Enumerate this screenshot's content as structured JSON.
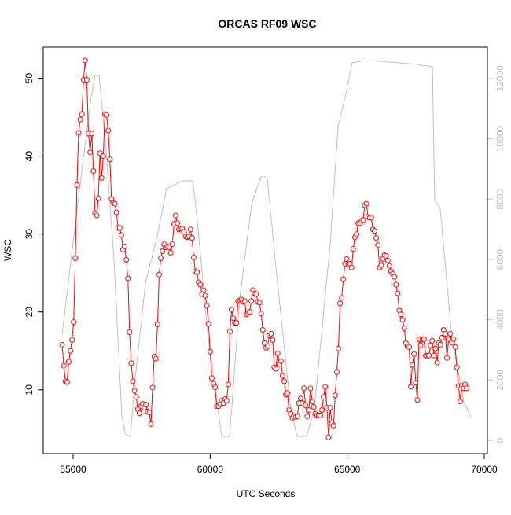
{
  "chart_data": {
    "type": "line",
    "title": "ORCAS RF09 WSC",
    "xlabel": "UTC Seconds",
    "ylabel": "WSC",
    "xlim": [
      53910,
      70115
    ],
    "xticks": [
      55000,
      60000,
      65000,
      70000
    ],
    "ylim": [
      1.8,
      54.0
    ],
    "yticks": [
      10,
      20,
      30,
      40,
      50
    ],
    "y2lim": [
      -440,
      13040
    ],
    "y2ticks": [
      0,
      2000,
      4000,
      6000,
      8000,
      10000,
      12000
    ],
    "series": [
      {
        "color": "#ff0000",
        "marker": "circle",
        "x": [
          54600,
          54660,
          54720,
          54780,
          54840,
          54900,
          54960,
          55020,
          55080,
          55140,
          55200,
          55260,
          55320,
          55380,
          55440,
          55500,
          55560,
          55620,
          55680,
          55740,
          55800,
          55860,
          55920,
          55980,
          56040,
          56100,
          56160,
          56220,
          56280,
          56340,
          56400,
          56460,
          56520,
          56580,
          56640,
          56700,
          56760,
          56820,
          56880,
          56940,
          57000,
          57060,
          57120,
          57180,
          57240,
          57300,
          57360,
          57420,
          57480,
          57540,
          57600,
          57660,
          57720,
          57780,
          57840,
          57900,
          57960,
          58020,
          58080,
          58140,
          58200,
          58260,
          58320,
          58380,
          58440,
          58500,
          58560,
          58620,
          58680,
          58740,
          58800,
          58860,
          58920,
          58980,
          59040,
          59100,
          59160,
          59220,
          59280,
          59340,
          59400,
          59460,
          59520,
          59580,
          59640,
          59700,
          59760,
          59820,
          59880,
          59940,
          60000,
          60060,
          60120,
          60180,
          60240,
          60300,
          60360,
          60420,
          60480,
          60540,
          60600,
          60660,
          60720,
          60780,
          60840,
          60900,
          60960,
          61020,
          61080,
          61140,
          61200,
          61260,
          61320,
          61380,
          61440,
          61500,
          61560,
          61620,
          61680,
          61740,
          61800,
          61860,
          61920,
          61980,
          62040,
          62100,
          62160,
          62220,
          62280,
          62340,
          62400,
          62460,
          62520,
          62580,
          62640,
          62700,
          62760,
          62820,
          62880,
          62940,
          63000,
          63060,
          63120,
          63180,
          63240,
          63300,
          63360,
          63420,
          63480,
          63540,
          63600,
          63660,
          63720,
          63780,
          63840,
          63900,
          63960,
          64020,
          64080,
          64140,
          64200,
          64260,
          64320,
          64380,
          64440,
          64500,
          64560,
          64620,
          64680,
          64740,
          64800,
          64860,
          64920,
          64980,
          65040,
          65100,
          65160,
          65220,
          65280,
          65340,
          65400,
          65460,
          65520,
          65580,
          65640,
          65700,
          65760,
          65820,
          65880,
          65940,
          66000,
          66060,
          66120,
          66180,
          66240,
          66300,
          66360,
          66420,
          66480,
          66540,
          66600,
          66660,
          66720,
          66780,
          66840,
          66900,
          66960,
          67020,
          67080,
          67140,
          67200,
          67260,
          67320,
          67380,
          67440,
          67500,
          67560,
          67620,
          67680,
          67740,
          67800,
          67860,
          67920,
          67980,
          68040,
          68100,
          68160,
          68220,
          68280,
          68340,
          68400,
          68460,
          68520,
          68580,
          68640,
          68700,
          68760,
          68820,
          68880,
          68940,
          69000,
          69060,
          69120,
          69180,
          69240,
          69300,
          69360
        ],
        "values": [
          15.8,
          13.1,
          11.1,
          11.0,
          13.6,
          15.0,
          16.4,
          18.7,
          26.9,
          36.3,
          43.0,
          44.7,
          45.4,
          49.8,
          52.3,
          49.8,
          42.9,
          40.5,
          42.9,
          38.1,
          32.7,
          32.4,
          34.6,
          40.4,
          37.2,
          40.0,
          45.4,
          45.3,
          43.3,
          39.6,
          34.5,
          34.0,
          33.9,
          32.8,
          30.8,
          30.8,
          29.9,
          28.0,
          28.4,
          26.7,
          24.3,
          17.4,
          13.4,
          11.1,
          9.9,
          9.1,
          7.5,
          7.0,
          7.9,
          8.2,
          7.7,
          8.1,
          7.2,
          7.1,
          5.6,
          10.3,
          14.3,
          14.0,
          18.4,
          24.8,
          26.9,
          27.8,
          28.7,
          28.3,
          28.4,
          28.3,
          27.6,
          28.7,
          31.3,
          32.4,
          31.4,
          30.6,
          30.7,
          30.7,
          30.3,
          29.7,
          29.6,
          29.7,
          30.6,
          29.5,
          27.0,
          25.2,
          25.1,
          23.8,
          23.5,
          22.3,
          22.8,
          22.1,
          20.8,
          18.5,
          14.9,
          11.5,
          10.8,
          10.3,
          7.9,
          7.9,
          8.2,
          8.6,
          8.3,
          8.8,
          8.6,
          10.7,
          17.5,
          20.3,
          19.2,
          18.6,
          18.6,
          21.4,
          21.5,
          21.6,
          21.3,
          21.4,
          19.7,
          19.9,
          20.0,
          21.4,
          22.8,
          22.4,
          22.3,
          21.3,
          21.2,
          19.8,
          17.7,
          16.0,
          15.4,
          15.6,
          17.0,
          17.2,
          16.4,
          12.9,
          12.7,
          14.7,
          13.3,
          13.7,
          11.8,
          11.1,
          9.4,
          9.6,
          7.4,
          6.9,
          6.4,
          6.6,
          6.5,
          6.6,
          8.3,
          8.9,
          8.3,
          10.2,
          8.0,
          6.6,
          7.4,
          10.2,
          8.5,
          7.8,
          6.9,
          6.7,
          6.7,
          6.7,
          7.4,
          9.1,
          10.4,
          7.7,
          3.9,
          7.7,
          5.7,
          5.4,
          9.3,
          12.3,
          15.3,
          21.1,
          21.8,
          24.2,
          26.2,
          26.8,
          26.1,
          26.2,
          25.7,
          28.1,
          29.6,
          30.0,
          31.4,
          31.4,
          31.7,
          31.8,
          33.7,
          33.9,
          32.2,
          32.1,
          32.1,
          30.6,
          30.4,
          29.5,
          28.6,
          25.7,
          26.0,
          26.8,
          27.3,
          27.2,
          26.6,
          25.9,
          25.2,
          24.9,
          24.5,
          23.5,
          22.4,
          20.2,
          19.7,
          19.0,
          17.9,
          16.0,
          15.6,
          15.5,
          10.4,
          13.2,
          14.6,
          10.9,
          8.7,
          16.5,
          15.7,
          16.5,
          16.5,
          14.4,
          14.4,
          14.4,
          15.7,
          16.3,
          14.4,
          15.3,
          13.5,
          16.0,
          15.8,
          16.7,
          17.7,
          17.2,
          14.1,
          16.5,
          17.2,
          16.1,
          16.5,
          15.5,
          12.9,
          10.5,
          8.5,
          10.5,
          10.2,
          10.7,
          10.2
        ]
      },
      {
        "color": "#bebebe",
        "axis": "y2",
        "x": [
          54600,
          55200,
          55630,
          55800,
          55950,
          56200,
          56490,
          56780,
          56920,
          57090,
          57270,
          57640,
          58070,
          58410,
          58990,
          59360,
          59500,
          59930,
          60420,
          60710,
          61080,
          61510,
          61850,
          62080,
          62370,
          62940,
          63170,
          63520,
          63800,
          64380,
          64670,
          64950,
          65180,
          65530,
          66100,
          67540,
          68110,
          68190,
          68390,
          68820,
          69250,
          69510
        ],
        "values": [
          3520,
          8090,
          11220,
          12100,
          12100,
          9650,
          6000,
          780,
          180,
          130,
          2090,
          5220,
          6780,
          8350,
          8610,
          8610,
          7570,
          3390,
          130,
          130,
          4700,
          7830,
          8740,
          8740,
          6000,
          1040,
          130,
          130,
          1040,
          6520,
          10440,
          11480,
          12520,
          12580,
          12580,
          12470,
          12390,
          7960,
          7700,
          3390,
          1300,
          780
        ]
      }
    ]
  }
}
